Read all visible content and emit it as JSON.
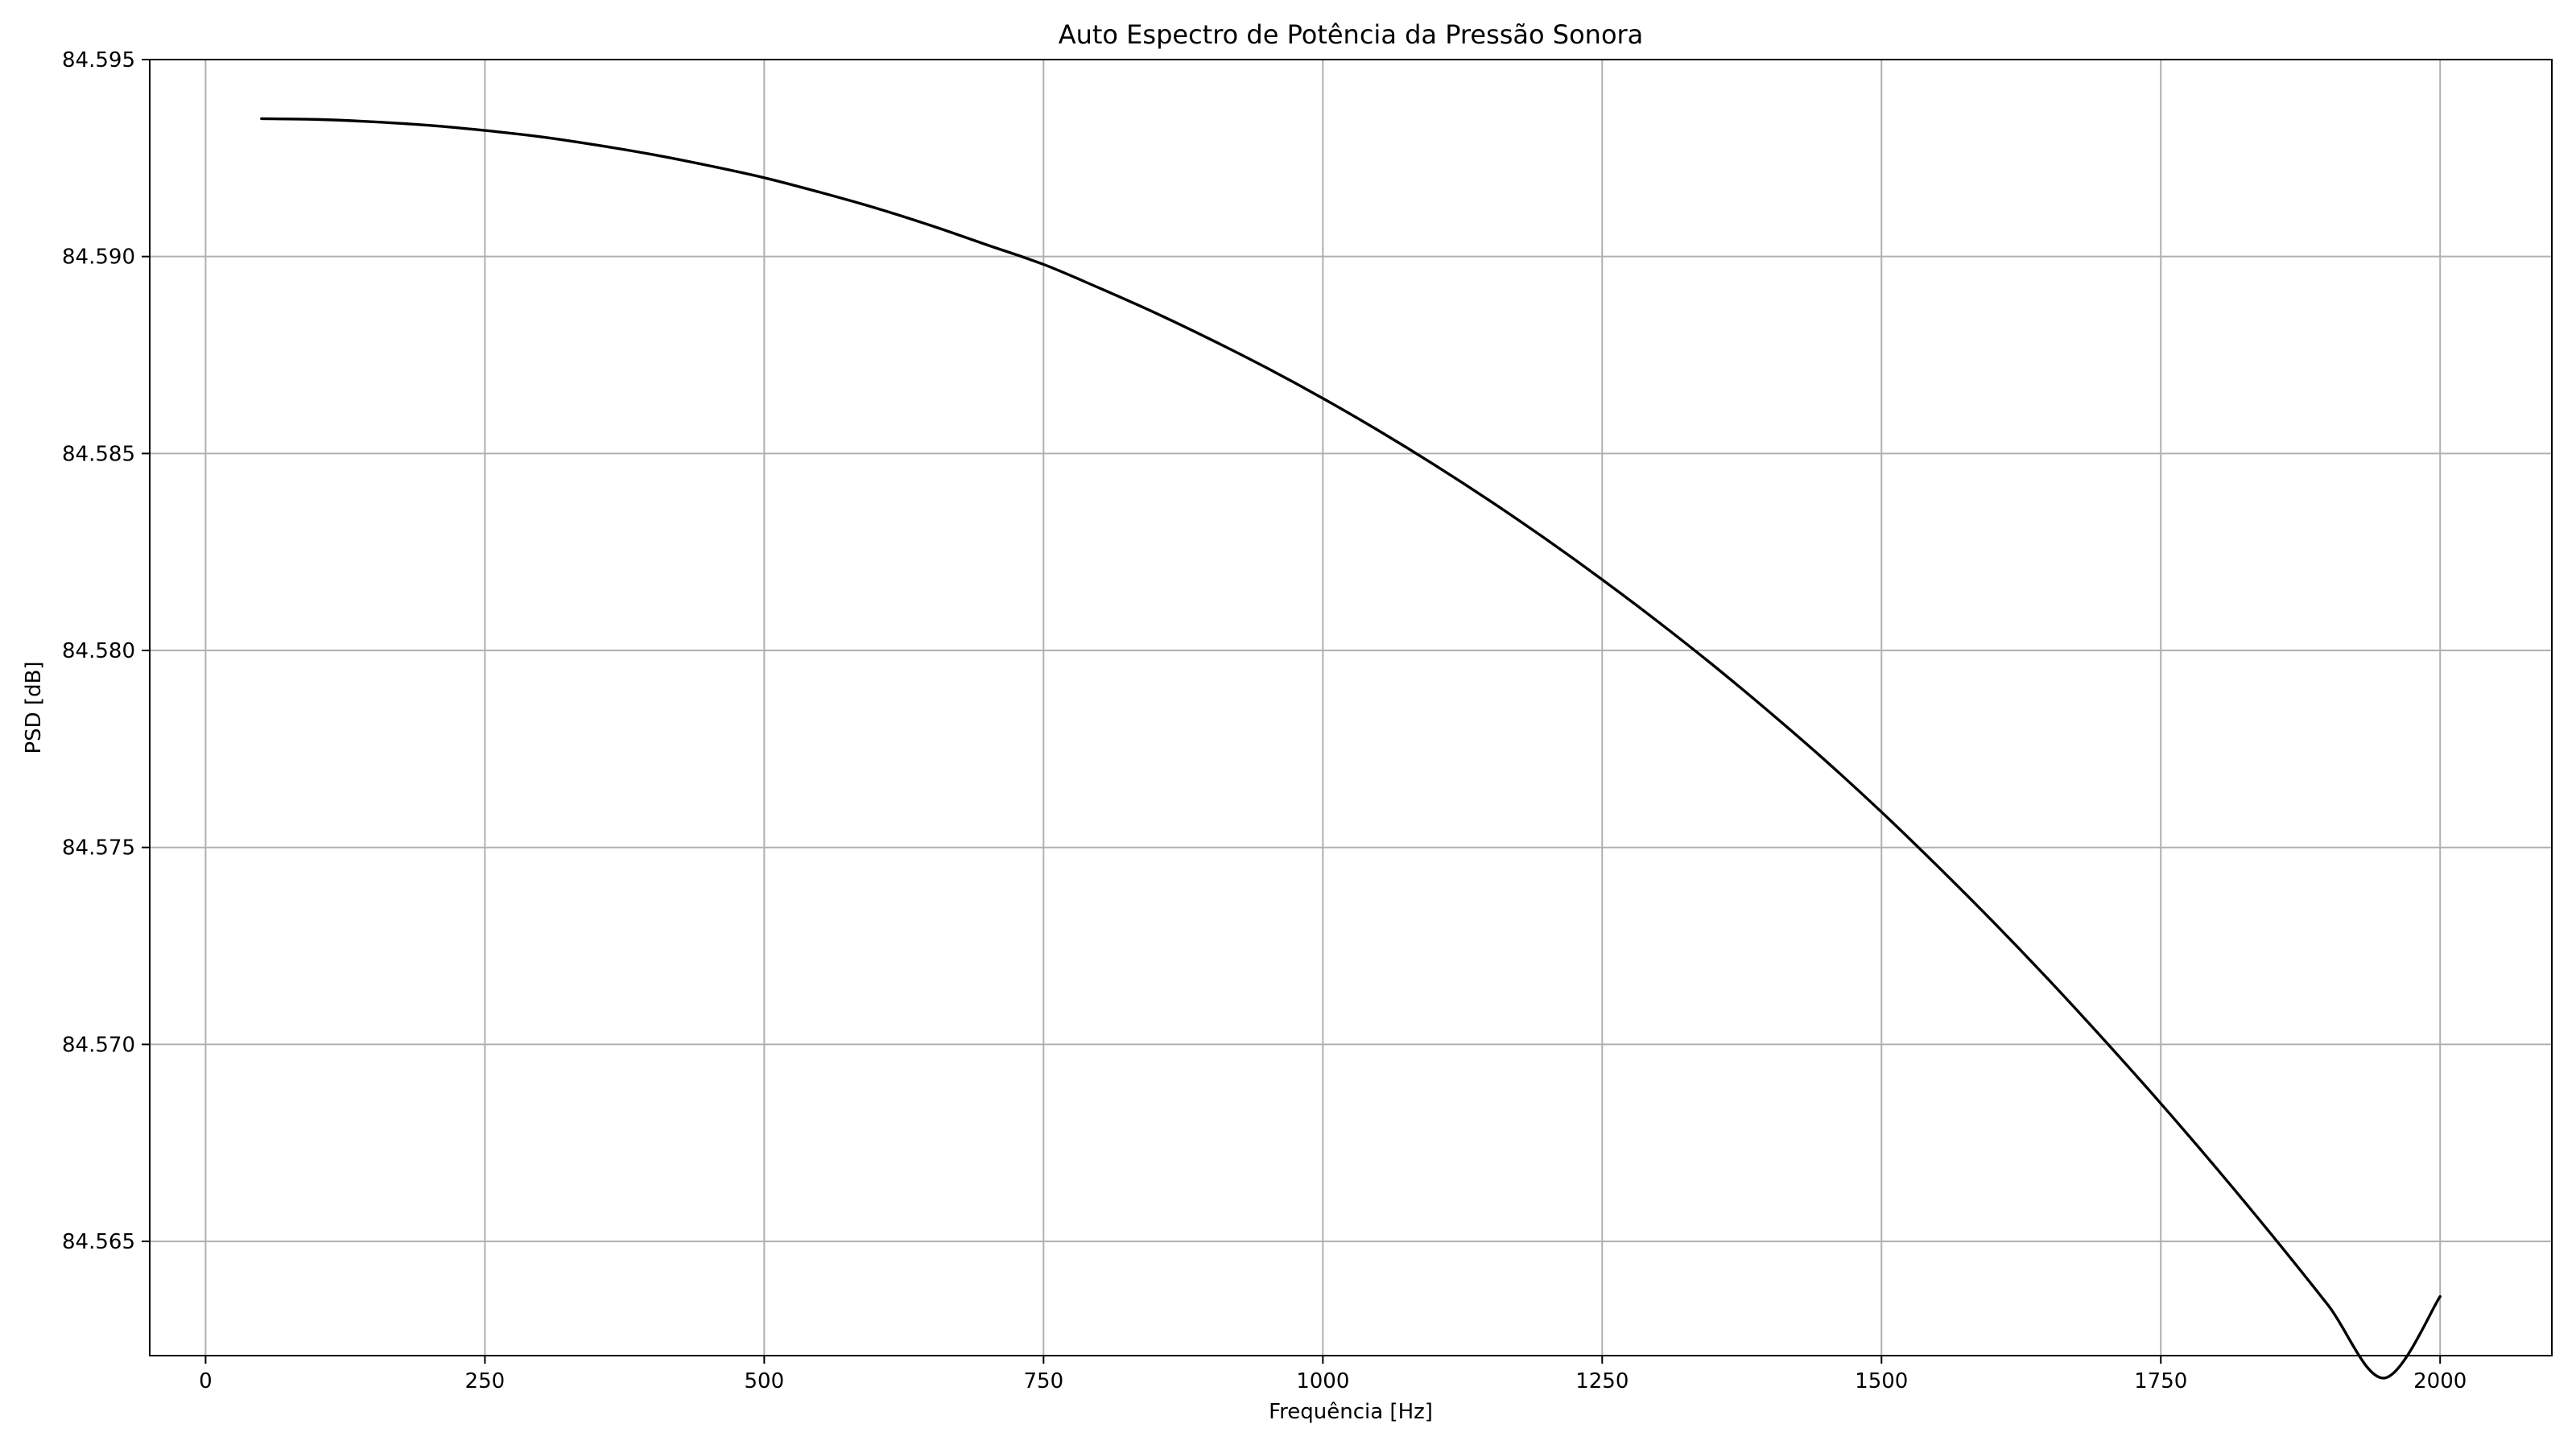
{
  "chart_data": {
    "type": "line",
    "title": "Auto Espectro de Potência da Pressão Sonora",
    "xlabel": "Frequência [Hz]",
    "ylabel": "PSD [dB]",
    "xlim": [
      -50,
      2100
    ],
    "ylim": [
      84.5621,
      84.595
    ],
    "xticks": [
      0,
      250,
      500,
      750,
      1000,
      1250,
      1500,
      1750,
      2000
    ],
    "xtick_labels": [
      "0",
      "250",
      "500",
      "750",
      "1000",
      "1250",
      "1500",
      "1750",
      "2000"
    ],
    "yticks": [
      84.565,
      84.57,
      84.575,
      84.58,
      84.585,
      84.59,
      84.595
    ],
    "ytick_labels": [
      "84.565",
      "84.570",
      "84.575",
      "84.580",
      "84.585",
      "84.590",
      "84.595"
    ],
    "grid": true,
    "series": [
      {
        "color": "#000000",
        "x": [
          50,
          100,
          150,
          200,
          250,
          300,
          350,
          400,
          450,
          500,
          550,
          600,
          650,
          700,
          750,
          800,
          850,
          900,
          950,
          1000,
          1050,
          1100,
          1150,
          1200,
          1250,
          1300,
          1350,
          1400,
          1450,
          1500,
          1550,
          1600,
          1650,
          1700,
          1750,
          1800,
          1850,
          1900,
          1950,
          2000
        ],
        "y": [
          84.5935,
          84.59348,
          84.59342,
          84.59333,
          84.5932,
          84.59304,
          84.59283,
          84.59259,
          84.59231,
          84.592,
          84.59163,
          84.59123,
          84.59078,
          84.59029,
          84.5898,
          84.5892,
          84.58857,
          84.58789,
          84.58717,
          84.5864,
          84.58558,
          84.58471,
          84.58379,
          84.58282,
          84.5818,
          84.58073,
          84.57961,
          84.57843,
          84.5772,
          84.5759,
          84.57453,
          84.57311,
          84.57163,
          84.57009,
          84.5685,
          84.56685,
          84.56514,
          84.56337,
          84.56153,
          84.5636
        ]
      }
    ]
  }
}
